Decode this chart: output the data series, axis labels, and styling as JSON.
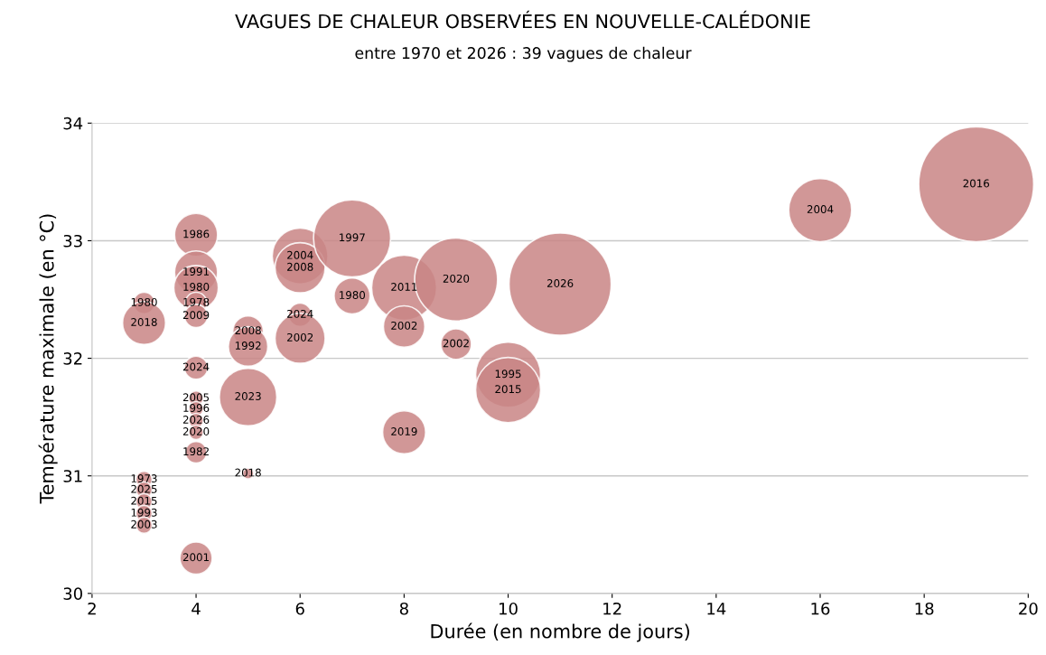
{
  "chart_data": {
    "type": "bubble",
    "title": "VAGUES DE CHALEUR OBSERVÉES EN NOUVELLE-CALÉDONIE",
    "subtitle": "entre 1970 et 2026 : 39 vagues de chaleur",
    "xlabel": "Durée (en nombre de jours)",
    "ylabel": "Température maximale (en °C)",
    "xlim": [
      2,
      20
    ],
    "xticks": [
      2,
      4,
      6,
      8,
      10,
      12,
      14,
      16,
      18,
      20
    ],
    "ylim": [
      30,
      34
    ],
    "yticks": [
      30,
      31,
      32,
      33,
      34
    ],
    "grid": "y",
    "legend": false,
    "series": [
      {
        "color": "#c98585",
        "x": [
          3,
          3,
          3,
          3,
          3,
          3,
          3,
          4,
          4,
          4,
          4,
          4,
          4,
          4,
          4,
          4,
          4,
          4,
          4,
          5,
          5,
          5,
          5,
          6,
          6,
          6,
          6,
          7,
          7,
          8,
          8,
          8,
          9,
          9,
          10,
          10,
          11,
          16,
          19
        ],
        "values": [
          32.47,
          32.3,
          30.97,
          30.88,
          30.78,
          30.68,
          30.58,
          33.05,
          32.73,
          32.6,
          32.47,
          32.36,
          31.92,
          31.66,
          31.57,
          31.47,
          31.37,
          31.2,
          30.3,
          32.23,
          32.1,
          31.67,
          31.02,
          32.87,
          32.77,
          32.37,
          32.17,
          33.02,
          32.53,
          32.6,
          32.27,
          31.37,
          32.67,
          32.12,
          31.86,
          31.73,
          32.63,
          33.26,
          33.48
        ],
        "sizes": [
          0.035,
          0.14,
          0.02,
          0.02,
          0.02,
          0.02,
          0.02,
          0.14,
          0.14,
          0.15,
          0.035,
          0.041,
          0.041,
          0.016,
          0.016,
          0.016,
          0.016,
          0.035,
          0.079,
          0.071,
          0.118,
          0.25,
          0.009,
          0.235,
          0.19,
          0.041,
          0.19,
          0.45,
          0.098,
          0.32,
          0.13,
          0.14,
          0.52,
          0.071,
          0.32,
          0.32,
          0.79,
          0.3,
          1
        ]
      }
    ],
    "annotations": [
      {
        "text": "1980",
        "x": 3,
        "y": 32.47
      },
      {
        "text": "2018",
        "x": 3,
        "y": 32.3
      },
      {
        "text": "1973",
        "x": 3,
        "y": 30.97
      },
      {
        "text": "2025",
        "x": 3,
        "y": 30.88
      },
      {
        "text": "2015",
        "x": 3,
        "y": 30.78
      },
      {
        "text": "1993",
        "x": 3,
        "y": 30.68
      },
      {
        "text": "2003",
        "x": 3,
        "y": 30.58
      },
      {
        "text": "1986",
        "x": 4,
        "y": 33.05
      },
      {
        "text": "1991",
        "x": 4,
        "y": 32.73
      },
      {
        "text": "1980",
        "x": 4,
        "y": 32.6
      },
      {
        "text": "1978",
        "x": 4,
        "y": 32.47
      },
      {
        "text": "2009",
        "x": 4,
        "y": 32.36
      },
      {
        "text": "2024",
        "x": 4,
        "y": 31.92
      },
      {
        "text": "2005",
        "x": 4,
        "y": 31.66
      },
      {
        "text": "1996",
        "x": 4,
        "y": 31.57
      },
      {
        "text": "2026",
        "x": 4,
        "y": 31.47
      },
      {
        "text": "2020",
        "x": 4,
        "y": 31.37
      },
      {
        "text": "1982",
        "x": 4,
        "y": 31.2
      },
      {
        "text": "2001",
        "x": 4,
        "y": 30.3
      },
      {
        "text": "2008",
        "x": 5,
        "y": 32.23
      },
      {
        "text": "1992",
        "x": 5,
        "y": 32.1
      },
      {
        "text": "2023",
        "x": 5,
        "y": 31.67
      },
      {
        "text": "2018",
        "x": 5,
        "y": 31.02
      },
      {
        "text": "2004",
        "x": 6,
        "y": 32.87
      },
      {
        "text": "2008",
        "x": 6,
        "y": 32.77
      },
      {
        "text": "2024",
        "x": 6,
        "y": 32.37
      },
      {
        "text": "2002",
        "x": 6,
        "y": 32.17
      },
      {
        "text": "1997",
        "x": 7,
        "y": 33.02
      },
      {
        "text": "1980",
        "x": 7,
        "y": 32.53
      },
      {
        "text": "2011",
        "x": 8,
        "y": 32.6
      },
      {
        "text": "2002",
        "x": 8,
        "y": 32.27
      },
      {
        "text": "2019",
        "x": 8,
        "y": 31.37
      },
      {
        "text": "2020",
        "x": 9,
        "y": 32.67
      },
      {
        "text": "2002",
        "x": 9,
        "y": 32.12
      },
      {
        "text": "1995",
        "x": 10,
        "y": 31.86
      },
      {
        "text": "2015",
        "x": 10,
        "y": 31.73
      },
      {
        "text": "2026",
        "x": 11,
        "y": 32.63
      },
      {
        "text": "2004",
        "x": 16,
        "y": 33.26
      },
      {
        "text": "2016",
        "x": 19,
        "y": 33.48
      }
    ]
  }
}
